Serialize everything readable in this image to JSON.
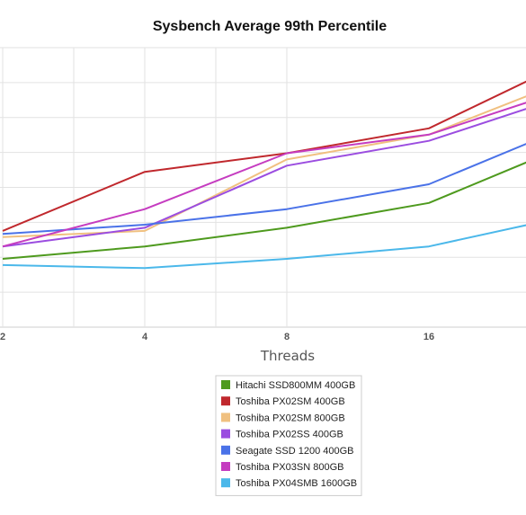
{
  "chart_data": {
    "type": "line",
    "title": "Sysbench Average 99th Percentile",
    "xlabel": "Threads",
    "ylabel": "",
    "x_scale": "log2",
    "x": [
      2,
      4,
      8,
      16,
      32
    ],
    "x_tick_labels": [
      "2",
      "4",
      "8",
      "16"
    ],
    "xlim": [
      2,
      26
    ],
    "ylim": [
      0,
      9
    ],
    "y_tick_labels_shown": false,
    "grid": true,
    "legend_position": "bottom",
    "series": [
      {
        "name": "Hitachi SSD800MM 400GB",
        "color": "#4e9a1e",
        "values": [
          2.2,
          2.6,
          3.2,
          4.0,
          5.9
        ]
      },
      {
        "name": "Toshiba PX02SM 400GB",
        "color": "#c0282d",
        "values": [
          3.1,
          5.0,
          5.6,
          6.4,
          8.6
        ]
      },
      {
        "name": "Toshiba PX02SM 800GB",
        "color": "#f0c080",
        "values": [
          2.9,
          3.1,
          5.4,
          6.2,
          8.0
        ]
      },
      {
        "name": "Toshiba PX02SS 400GB",
        "color": "#9b4de0",
        "values": [
          2.6,
          3.2,
          5.2,
          6.0,
          7.5
        ]
      },
      {
        "name": "Seagate SSD 1200 400GB",
        "color": "#4a72e8",
        "values": [
          3.0,
          3.3,
          3.8,
          4.6,
          6.5
        ]
      },
      {
        "name": "Toshiba PX03SN 800GB",
        "color": "#c53cc0",
        "values": [
          2.6,
          3.8,
          5.6,
          6.2,
          7.7
        ]
      },
      {
        "name": "Toshiba PX04SMB 1600GB",
        "color": "#4bb8ea",
        "values": [
          2.0,
          1.9,
          2.2,
          2.6,
          3.6
        ]
      }
    ]
  }
}
